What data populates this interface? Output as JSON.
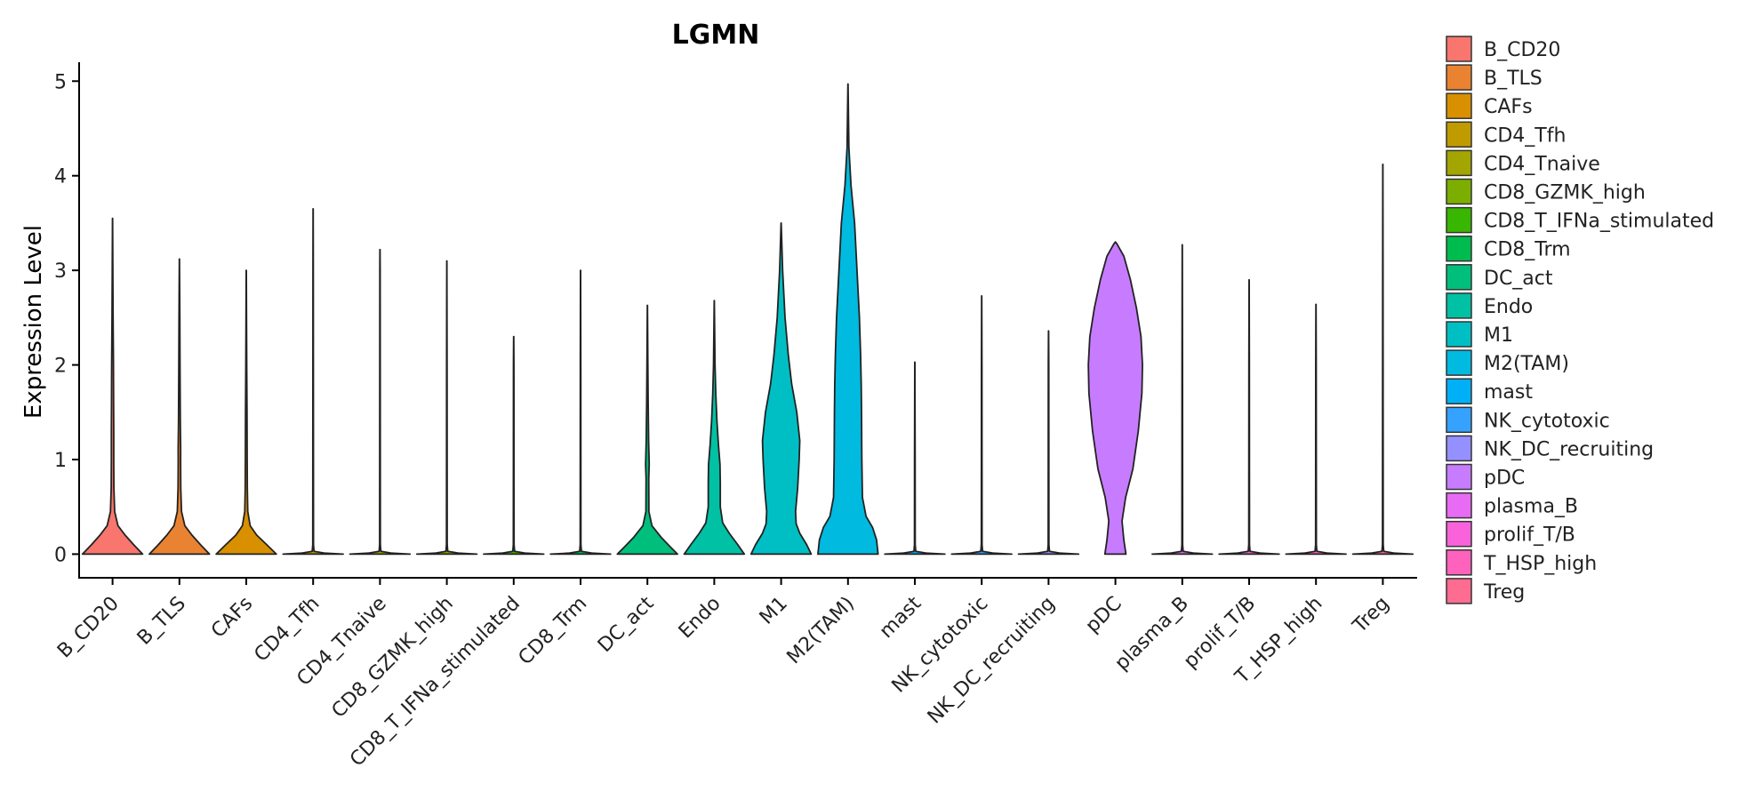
{
  "chart_data": {
    "type": "violin",
    "title": "LGMN",
    "xlabel": "",
    "ylabel": "Expression Level",
    "ylim": [
      -0.25,
      5.2
    ],
    "yticks": [
      0,
      1,
      2,
      3,
      4,
      5
    ],
    "legend_position": "right",
    "categories": [
      "B_CD20",
      "B_TLS",
      "CAFs",
      "CD4_Tfh",
      "CD4_Tnaive",
      "CD8_GZMK_high",
      "CD8_T_IFNa_stimulated",
      "CD8_Trm",
      "DC_act",
      "Endo",
      "M1",
      "M2(TAM)",
      "mast",
      "NK_cytotoxic",
      "NK_DC_recruiting",
      "pDC",
      "plasma_B",
      "prolif_T/B",
      "T_HSP_high",
      "Treg"
    ],
    "colors": [
      "#F8766D",
      "#EA8331",
      "#D89000",
      "#C09B00",
      "#A3A500",
      "#7CAE00",
      "#39B600",
      "#00BB4E",
      "#00BF7D",
      "#00C1A3",
      "#00BFC4",
      "#00BAE0",
      "#00B0F6",
      "#35A2FF",
      "#9590FF",
      "#C77CFF",
      "#E76BF3",
      "#FA62DB",
      "#FF62BC",
      "#FF6C91"
    ],
    "violins": [
      {
        "name": "B_CD20",
        "max": 3.55,
        "profile": [
          [
            0,
            1.0
          ],
          [
            0.1,
            0.7
          ],
          [
            0.2,
            0.42
          ],
          [
            0.3,
            0.18
          ],
          [
            0.45,
            0.07
          ],
          [
            0.7,
            0.045
          ],
          [
            1.0,
            0.04
          ],
          [
            1.3,
            0.04
          ],
          [
            1.6,
            0.035
          ],
          [
            2.0,
            0.03
          ],
          [
            2.5,
            0.018
          ],
          [
            3.0,
            0.01
          ],
          [
            3.55,
            0.002
          ]
        ]
      },
      {
        "name": "B_TLS",
        "max": 3.12,
        "profile": [
          [
            0,
            1.0
          ],
          [
            0.1,
            0.7
          ],
          [
            0.2,
            0.42
          ],
          [
            0.3,
            0.18
          ],
          [
            0.45,
            0.07
          ],
          [
            0.7,
            0.045
          ],
          [
            1.0,
            0.04
          ],
          [
            1.1,
            0.042
          ],
          [
            1.4,
            0.03
          ],
          [
            2.0,
            0.02
          ],
          [
            2.5,
            0.014
          ],
          [
            3.12,
            0.002
          ]
        ]
      },
      {
        "name": "CAFs",
        "max": 3.0,
        "profile": [
          [
            0,
            1.0
          ],
          [
            0.1,
            0.68
          ],
          [
            0.2,
            0.35
          ],
          [
            0.3,
            0.13
          ],
          [
            0.45,
            0.05
          ],
          [
            0.7,
            0.035
          ],
          [
            1.0,
            0.03
          ],
          [
            1.5,
            0.025
          ],
          [
            2.0,
            0.015
          ],
          [
            2.5,
            0.008
          ],
          [
            3.0,
            0.002
          ]
        ]
      },
      {
        "name": "CD4_Tfh",
        "max": 3.65,
        "profile": [
          [
            0,
            1.0
          ],
          [
            0.01,
            0.4
          ],
          [
            0.03,
            0.03
          ],
          [
            0.1,
            0.012
          ],
          [
            1.0,
            0.01
          ],
          [
            2.0,
            0.008
          ],
          [
            3.0,
            0.006
          ],
          [
            3.65,
            0.002
          ]
        ]
      },
      {
        "name": "CD4_Tnaive",
        "max": 3.22,
        "profile": [
          [
            0,
            1.0
          ],
          [
            0.01,
            0.4
          ],
          [
            0.03,
            0.03
          ],
          [
            0.1,
            0.012
          ],
          [
            1.0,
            0.01
          ],
          [
            2.0,
            0.008
          ],
          [
            3.0,
            0.006
          ],
          [
            3.22,
            0.002
          ]
        ]
      },
      {
        "name": "CD8_GZMK_high",
        "max": 3.1,
        "profile": [
          [
            0,
            1.0
          ],
          [
            0.01,
            0.4
          ],
          [
            0.03,
            0.03
          ],
          [
            0.1,
            0.012
          ],
          [
            1.0,
            0.01
          ],
          [
            2.0,
            0.008
          ],
          [
            3.1,
            0.002
          ]
        ]
      },
      {
        "name": "CD8_T_IFNa_stimulated",
        "max": 2.3,
        "profile": [
          [
            0,
            1.0
          ],
          [
            0.01,
            0.4
          ],
          [
            0.03,
            0.03
          ],
          [
            0.1,
            0.012
          ],
          [
            1.0,
            0.01
          ],
          [
            2.0,
            0.008
          ],
          [
            2.3,
            0.002
          ]
        ]
      },
      {
        "name": "CD8_Trm",
        "max": 3.0,
        "profile": [
          [
            0,
            1.0
          ],
          [
            0.01,
            0.4
          ],
          [
            0.03,
            0.03
          ],
          [
            0.1,
            0.012
          ],
          [
            1.0,
            0.01
          ],
          [
            2.0,
            0.008
          ],
          [
            3.0,
            0.002
          ]
        ]
      },
      {
        "name": "DC_act",
        "max": 2.63,
        "profile": [
          [
            0,
            1.0
          ],
          [
            0.08,
            0.75
          ],
          [
            0.18,
            0.45
          ],
          [
            0.3,
            0.15
          ],
          [
            0.45,
            0.05
          ],
          [
            0.8,
            0.045
          ],
          [
            0.95,
            0.06
          ],
          [
            1.2,
            0.04
          ],
          [
            1.6,
            0.025
          ],
          [
            2.0,
            0.015
          ],
          [
            2.63,
            0.002
          ]
        ]
      },
      {
        "name": "Endo",
        "max": 2.68,
        "profile": [
          [
            0,
            1.0
          ],
          [
            0.1,
            0.78
          ],
          [
            0.22,
            0.5
          ],
          [
            0.33,
            0.28
          ],
          [
            0.5,
            0.2
          ],
          [
            0.75,
            0.2
          ],
          [
            0.95,
            0.19
          ],
          [
            1.15,
            0.14
          ],
          [
            1.4,
            0.09
          ],
          [
            1.7,
            0.05
          ],
          [
            2.0,
            0.025
          ],
          [
            2.68,
            0.002
          ]
        ]
      },
      {
        "name": "M1",
        "max": 3.5,
        "profile": [
          [
            0,
            1.0
          ],
          [
            0.1,
            0.85
          ],
          [
            0.22,
            0.62
          ],
          [
            0.32,
            0.5
          ],
          [
            0.45,
            0.48
          ],
          [
            0.7,
            0.55
          ],
          [
            1.0,
            0.6
          ],
          [
            1.2,
            0.62
          ],
          [
            1.5,
            0.52
          ],
          [
            1.8,
            0.35
          ],
          [
            2.1,
            0.24
          ],
          [
            2.5,
            0.13
          ],
          [
            3.0,
            0.05
          ],
          [
            3.5,
            0.002
          ]
        ]
      },
      {
        "name": "M2(TAM)",
        "max": 4.97,
        "profile": [
          [
            0,
            1.0
          ],
          [
            0.15,
            0.95
          ],
          [
            0.28,
            0.82
          ],
          [
            0.4,
            0.6
          ],
          [
            0.6,
            0.48
          ],
          [
            1.0,
            0.46
          ],
          [
            1.5,
            0.45
          ],
          [
            1.8,
            0.44
          ],
          [
            2.1,
            0.42
          ],
          [
            2.5,
            0.38
          ],
          [
            3.0,
            0.3
          ],
          [
            3.5,
            0.22
          ],
          [
            3.9,
            0.1
          ],
          [
            4.3,
            0.03
          ],
          [
            4.97,
            0.002
          ]
        ]
      },
      {
        "name": "mast",
        "max": 2.03,
        "profile": [
          [
            0,
            1.0
          ],
          [
            0.01,
            0.4
          ],
          [
            0.03,
            0.03
          ],
          [
            0.1,
            0.012
          ],
          [
            1.0,
            0.01
          ],
          [
            2.03,
            0.002
          ]
        ]
      },
      {
        "name": "NK_cytotoxic",
        "max": 2.73,
        "profile": [
          [
            0,
            1.0
          ],
          [
            0.01,
            0.4
          ],
          [
            0.03,
            0.03
          ],
          [
            0.1,
            0.012
          ],
          [
            1.0,
            0.01
          ],
          [
            2.0,
            0.008
          ],
          [
            2.73,
            0.002
          ]
        ]
      },
      {
        "name": "NK_DC_recruiting",
        "max": 2.36,
        "profile": [
          [
            0,
            1.0
          ],
          [
            0.01,
            0.4
          ],
          [
            0.03,
            0.03
          ],
          [
            0.1,
            0.012
          ],
          [
            1.0,
            0.01
          ],
          [
            2.0,
            0.008
          ],
          [
            2.36,
            0.002
          ]
        ]
      },
      {
        "name": "pDC",
        "max": 3.3,
        "profile": [
          [
            0,
            0.35
          ],
          [
            0.15,
            0.28
          ],
          [
            0.35,
            0.22
          ],
          [
            0.6,
            0.34
          ],
          [
            0.9,
            0.58
          ],
          [
            1.3,
            0.76
          ],
          [
            1.7,
            0.88
          ],
          [
            2.0,
            0.9
          ],
          [
            2.3,
            0.85
          ],
          [
            2.6,
            0.7
          ],
          [
            2.9,
            0.5
          ],
          [
            3.15,
            0.28
          ],
          [
            3.28,
            0.05
          ],
          [
            3.3,
            0.0
          ]
        ]
      },
      {
        "name": "plasma_B",
        "max": 3.27,
        "profile": [
          [
            0,
            1.0
          ],
          [
            0.01,
            0.4
          ],
          [
            0.03,
            0.03
          ],
          [
            0.1,
            0.012
          ],
          [
            1.0,
            0.01
          ],
          [
            2.0,
            0.008
          ],
          [
            3.27,
            0.002
          ]
        ]
      },
      {
        "name": "prolif_T/B",
        "max": 2.9,
        "profile": [
          [
            0,
            1.0
          ],
          [
            0.01,
            0.4
          ],
          [
            0.03,
            0.03
          ],
          [
            0.1,
            0.012
          ],
          [
            1.0,
            0.01
          ],
          [
            2.0,
            0.008
          ],
          [
            2.9,
            0.002
          ]
        ]
      },
      {
        "name": "T_HSP_high",
        "max": 2.64,
        "profile": [
          [
            0,
            1.0
          ],
          [
            0.01,
            0.4
          ],
          [
            0.03,
            0.03
          ],
          [
            0.1,
            0.012
          ],
          [
            1.0,
            0.01
          ],
          [
            2.0,
            0.008
          ],
          [
            2.64,
            0.002
          ]
        ]
      },
      {
        "name": "Treg",
        "max": 4.12,
        "profile": [
          [
            0,
            1.0
          ],
          [
            0.01,
            0.4
          ],
          [
            0.03,
            0.03
          ],
          [
            0.1,
            0.012
          ],
          [
            1.0,
            0.01
          ],
          [
            2.0,
            0.008
          ],
          [
            3.0,
            0.006
          ],
          [
            4.12,
            0.002
          ]
        ]
      }
    ]
  }
}
